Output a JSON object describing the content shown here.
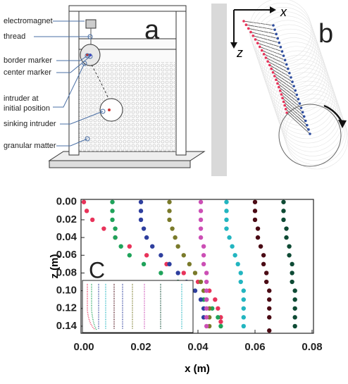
{
  "panel_a": {
    "label": "a",
    "annotations": [
      "electromagnet",
      "thread",
      "border marker",
      "center marker",
      "intruder at initial position",
      "sinking intruder",
      "granular matter"
    ]
  },
  "panel_b": {
    "label": "b",
    "x_axis": "x",
    "z_axis": "z"
  },
  "chart_data": {
    "type": "scatter",
    "panel_label": "C",
    "x_label": "x (m)",
    "y_label": "z (m)",
    "xlim": [
      -0.001,
      0.0805
    ],
    "ylim": [
      -0.003,
      0.148
    ],
    "y_inverted": true,
    "xticks": [
      {
        "value": 0,
        "label": "0.00"
      },
      {
        "value": 0.02,
        "label": "0.02"
      },
      {
        "value": 0.04,
        "label": "0.04"
      },
      {
        "value": 0.06,
        "label": "0.06"
      },
      {
        "value": 0.08,
        "label": "0.08"
      }
    ],
    "yticks": [
      {
        "value": 0,
        "label": "0.00"
      },
      {
        "value": 0.02,
        "label": "0.02"
      },
      {
        "value": 0.04,
        "label": "0.04"
      },
      {
        "value": 0.06,
        "label": "0.06"
      },
      {
        "value": 0.08,
        "label": "0.08"
      },
      {
        "value": 0.1,
        "label": "0.10"
      },
      {
        "value": 0.12,
        "label": "0.12"
      },
      {
        "value": 0.14,
        "label": "0.14"
      }
    ],
    "series": [
      {
        "color": "#e8335a",
        "x": [
          0,
          0.001,
          0.003,
          0.007,
          0.011,
          0.016,
          0.022,
          0.029,
          0.035,
          0.04,
          0.044,
          0.046,
          0.047,
          0.048,
          0.048
        ],
        "y": [
          0,
          0.01,
          0.02,
          0.03,
          0.04,
          0.05,
          0.06,
          0.07,
          0.08,
          0.09,
          0.1,
          0.11,
          0.12,
          0.13,
          0.135
        ]
      },
      {
        "color": "#1fa35a",
        "x": [
          0.01,
          0.01,
          0.01,
          0.011,
          0.011,
          0.013,
          0.016,
          0.021,
          0.027,
          0.033,
          0.038,
          0.042,
          0.045,
          0.047,
          0.048
        ],
        "y": [
          0,
          0.01,
          0.02,
          0.03,
          0.04,
          0.05,
          0.06,
          0.07,
          0.08,
          0.09,
          0.1,
          0.11,
          0.12,
          0.13,
          0.14
        ]
      },
      {
        "color": "#2e3f9e",
        "x": [
          0.02,
          0.02,
          0.02,
          0.021,
          0.022,
          0.024,
          0.027,
          0.03,
          0.033,
          0.036,
          0.039,
          0.041,
          0.042,
          0.042
        ],
        "y": [
          0,
          0.01,
          0.02,
          0.03,
          0.04,
          0.05,
          0.06,
          0.07,
          0.08,
          0.09,
          0.1,
          0.11,
          0.12,
          0.13
        ]
      },
      {
        "color": "#7a7a2a",
        "x": [
          0.03,
          0.03,
          0.03,
          0.031,
          0.032,
          0.033,
          0.035,
          0.037,
          0.039,
          0.041,
          0.042,
          0.043,
          0.044,
          0.044,
          0.044
        ],
        "y": [
          0,
          0.01,
          0.02,
          0.03,
          0.04,
          0.05,
          0.06,
          0.07,
          0.08,
          0.09,
          0.1,
          0.11,
          0.12,
          0.13,
          0.14
        ]
      },
      {
        "color": "#cc4fb5",
        "x": [
          0.041,
          0.041,
          0.041,
          0.041,
          0.041,
          0.042,
          0.042,
          0.042,
          0.043,
          0.043,
          0.043,
          0.043,
          0.043,
          0.043,
          0.043
        ],
        "y": [
          0,
          0.01,
          0.02,
          0.03,
          0.04,
          0.05,
          0.06,
          0.07,
          0.08,
          0.09,
          0.1,
          0.11,
          0.12,
          0.13,
          0.14
        ]
      },
      {
        "color": "#22b5c0",
        "x": [
          0.05,
          0.05,
          0.05,
          0.05,
          0.051,
          0.052,
          0.053,
          0.054,
          0.055,
          0.055,
          0.056,
          0.056,
          0.056,
          0.056,
          0.056
        ],
        "y": [
          0,
          0.01,
          0.02,
          0.03,
          0.04,
          0.05,
          0.06,
          0.07,
          0.08,
          0.09,
          0.1,
          0.11,
          0.12,
          0.13,
          0.14
        ]
      },
      {
        "color": "#4a0a14",
        "x": [
          0.06,
          0.06,
          0.06,
          0.061,
          0.061,
          0.062,
          0.063,
          0.063,
          0.064,
          0.064,
          0.065,
          0.065,
          0.065,
          0.065,
          0.065
        ],
        "y": [
          0,
          0.01,
          0.02,
          0.03,
          0.04,
          0.05,
          0.06,
          0.07,
          0.08,
          0.09,
          0.1,
          0.11,
          0.12,
          0.13,
          0.145
        ]
      },
      {
        "color": "#0e4a34",
        "x": [
          0.07,
          0.07,
          0.07,
          0.071,
          0.071,
          0.072,
          0.072,
          0.073,
          0.073,
          0.073,
          0.074,
          0.074,
          0.074,
          0.074,
          0.074
        ],
        "y": [
          0,
          0.01,
          0.02,
          0.03,
          0.04,
          0.05,
          0.06,
          0.07,
          0.08,
          0.09,
          0.1,
          0.11,
          0.12,
          0.13,
          0.14
        ]
      }
    ]
  }
}
